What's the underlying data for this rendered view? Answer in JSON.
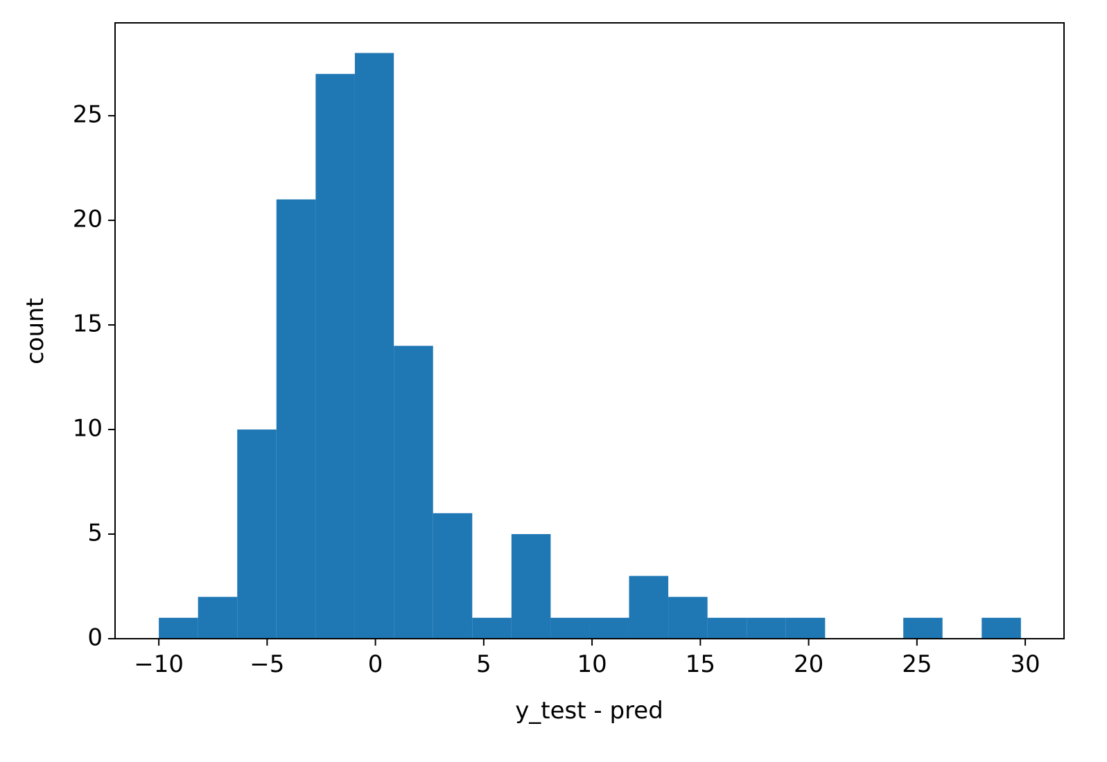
{
  "chart_data": {
    "type": "histogram",
    "xlabel": "y_test - pred",
    "ylabel": "count",
    "bins": [
      -10,
      -8.19,
      -6.38,
      -4.57,
      -2.76,
      -0.95,
      0.85,
      2.66,
      4.47,
      6.28,
      8.09,
      9.9,
      11.71,
      13.52,
      15.33,
      17.14,
      18.95,
      20.76,
      22.56,
      24.37,
      26.18,
      27.99,
      29.8
    ],
    "counts": [
      1,
      2,
      10,
      21,
      27,
      28,
      14,
      6,
      1,
      5,
      1,
      1,
      3,
      2,
      1,
      1,
      1,
      0,
      0,
      1,
      0,
      1
    ],
    "color": "#1f77b4",
    "xlim": [
      -12.02,
      31.79
    ],
    "ylim": [
      0,
      29.44
    ],
    "xticks": [
      {
        "value": -10,
        "label": "−10"
      },
      {
        "value": -5,
        "label": "−5"
      },
      0,
      5,
      10,
      15,
      20,
      25,
      30
    ],
    "yticks": [
      0,
      5,
      10,
      15,
      20,
      25
    ]
  }
}
